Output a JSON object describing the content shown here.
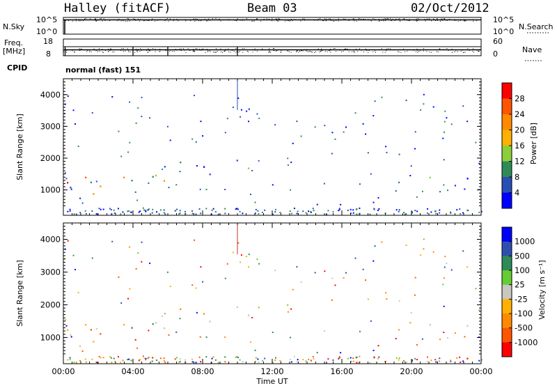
{
  "header": {
    "station": "Halley (fitACF)",
    "beam": "Beam 03",
    "date": "02/Oct/2012"
  },
  "param_panels": {
    "nsky_label": "N.Sky",
    "nsky_ticks": [
      "10^5",
      "10^0"
    ],
    "nsearch_label": "N.Search",
    "nsearch_ticks": [
      "10^5",
      "10^0"
    ],
    "freq_label_1": "Freq.",
    "freq_label_2": "[MHz]",
    "freq_ticks": [
      "18",
      "8"
    ],
    "nave_label": "Nave",
    "nave_ticks": [
      "60",
      "0"
    ],
    "cpid_label": "CPID",
    "cpid_value": "normal (fast) 151"
  },
  "chart_data": [
    {
      "type": "heatmap",
      "name": "power",
      "ylabel": "Slant Range [km]",
      "ylim": [
        200,
        4500
      ],
      "y_ticks": [
        "1000",
        "2000",
        "3000",
        "4000"
      ],
      "colorbar": {
        "label": "Power [dB]",
        "ticks": [
          "28",
          "24",
          "20",
          "16",
          "12",
          "8",
          "4"
        ],
        "colors": [
          "#ff0000",
          "#ff5500",
          "#ff8a00",
          "#ffb000",
          "#8ccf3a",
          "#2e8b57",
          "#2850b4",
          "#0000ff"
        ]
      },
      "regions": [
        {
          "t": [
            0.2,
            3.0
          ],
          "r": [
            700,
            1300
          ],
          "level": "high"
        },
        {
          "t": [
            1.0,
            5.5
          ],
          "r": [
            800,
            1700
          ],
          "level": "high"
        },
        {
          "t": [
            0.0,
            1.0
          ],
          "r": [
            900,
            1500
          ],
          "level": "mid"
        },
        {
          "t": [
            0.0,
            1.0
          ],
          "r": [
            2000,
            2400
          ],
          "level": "low"
        },
        {
          "t": [
            5.0,
            6.8
          ],
          "r": [
            1000,
            2600
          ],
          "level": "mid"
        },
        {
          "t": [
            7.2,
            9.5
          ],
          "r": [
            1300,
            2600
          ],
          "level": "low"
        },
        {
          "t": [
            9.0,
            11.6
          ],
          "r": [
            1400,
            2700
          ],
          "level": "low"
        },
        {
          "t": [
            18.0,
            24.0
          ],
          "r": [
            1000,
            1600
          ],
          "level": "low"
        },
        {
          "t": [
            22.5,
            24.0
          ],
          "r": [
            1700,
            2100
          ],
          "level": "low"
        }
      ]
    },
    {
      "type": "heatmap",
      "name": "velocity",
      "xlabel": "Time UT",
      "ylabel": "Slant Range [km]",
      "ylim": [
        200,
        4500
      ],
      "y_ticks": [
        "1000",
        "2000",
        "3000",
        "4000"
      ],
      "x_ticks": [
        "00:00",
        "04:00",
        "08:00",
        "12:00",
        "16:00",
        "20:00",
        "00:00"
      ],
      "x_range_hours": [
        0,
        24
      ],
      "colorbar": {
        "label": "Velocity [m s⁻¹]",
        "ticks": [
          "1000",
          "500",
          "100",
          "25",
          "-25",
          "-100",
          "-500",
          "-1000"
        ],
        "colors": [
          "#0000ff",
          "#2f4fb0",
          "#2e8b57",
          "#66cc33",
          "#c8c8c0",
          "#ffb000",
          "#ff8a00",
          "#ff5500",
          "#ff0000"
        ]
      }
    }
  ]
}
